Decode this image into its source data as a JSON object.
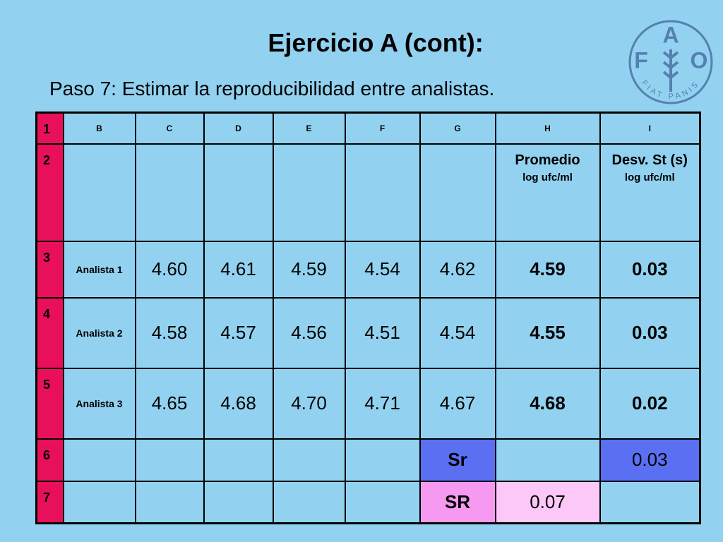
{
  "header": {
    "title": "Ejercicio A (cont):",
    "subtitle": "Paso 7: Estimar la reproducibilidad entre analistas."
  },
  "logo": {
    "letters": [
      "F",
      "A",
      "O"
    ],
    "motto": "FIAT PANIS"
  },
  "table": {
    "rows": [
      [
        "1",
        "B",
        "C",
        "D",
        "E",
        "F",
        "G",
        "H",
        "I"
      ],
      [
        "2",
        null,
        null,
        null,
        null,
        null,
        null,
        {
          "label": "Promedio",
          "unit": "log ufc/ml"
        },
        {
          "label": "Desv. St (s)",
          "unit": "log ufc/ml"
        }
      ],
      [
        "3",
        "Analista 1",
        "4.60",
        "4.61",
        "4.59",
        "4.54",
        "4.62",
        "4.59",
        "0.03"
      ],
      [
        "4",
        "Analista 2",
        "4.58",
        "4.57",
        "4.56",
        "4.51",
        "4.54",
        "4.55",
        "0.03"
      ],
      [
        "5",
        "Analista 3",
        "4.65",
        "4.68",
        "4.70",
        "4.71",
        "4.67",
        "4.68",
        "0.02"
      ],
      [
        "6",
        null,
        null,
        null,
        null,
        null,
        "Sr",
        null,
        "0.03"
      ],
      [
        "7",
        null,
        null,
        null,
        null,
        null,
        "SR",
        "0.07",
        null
      ]
    ]
  }
}
